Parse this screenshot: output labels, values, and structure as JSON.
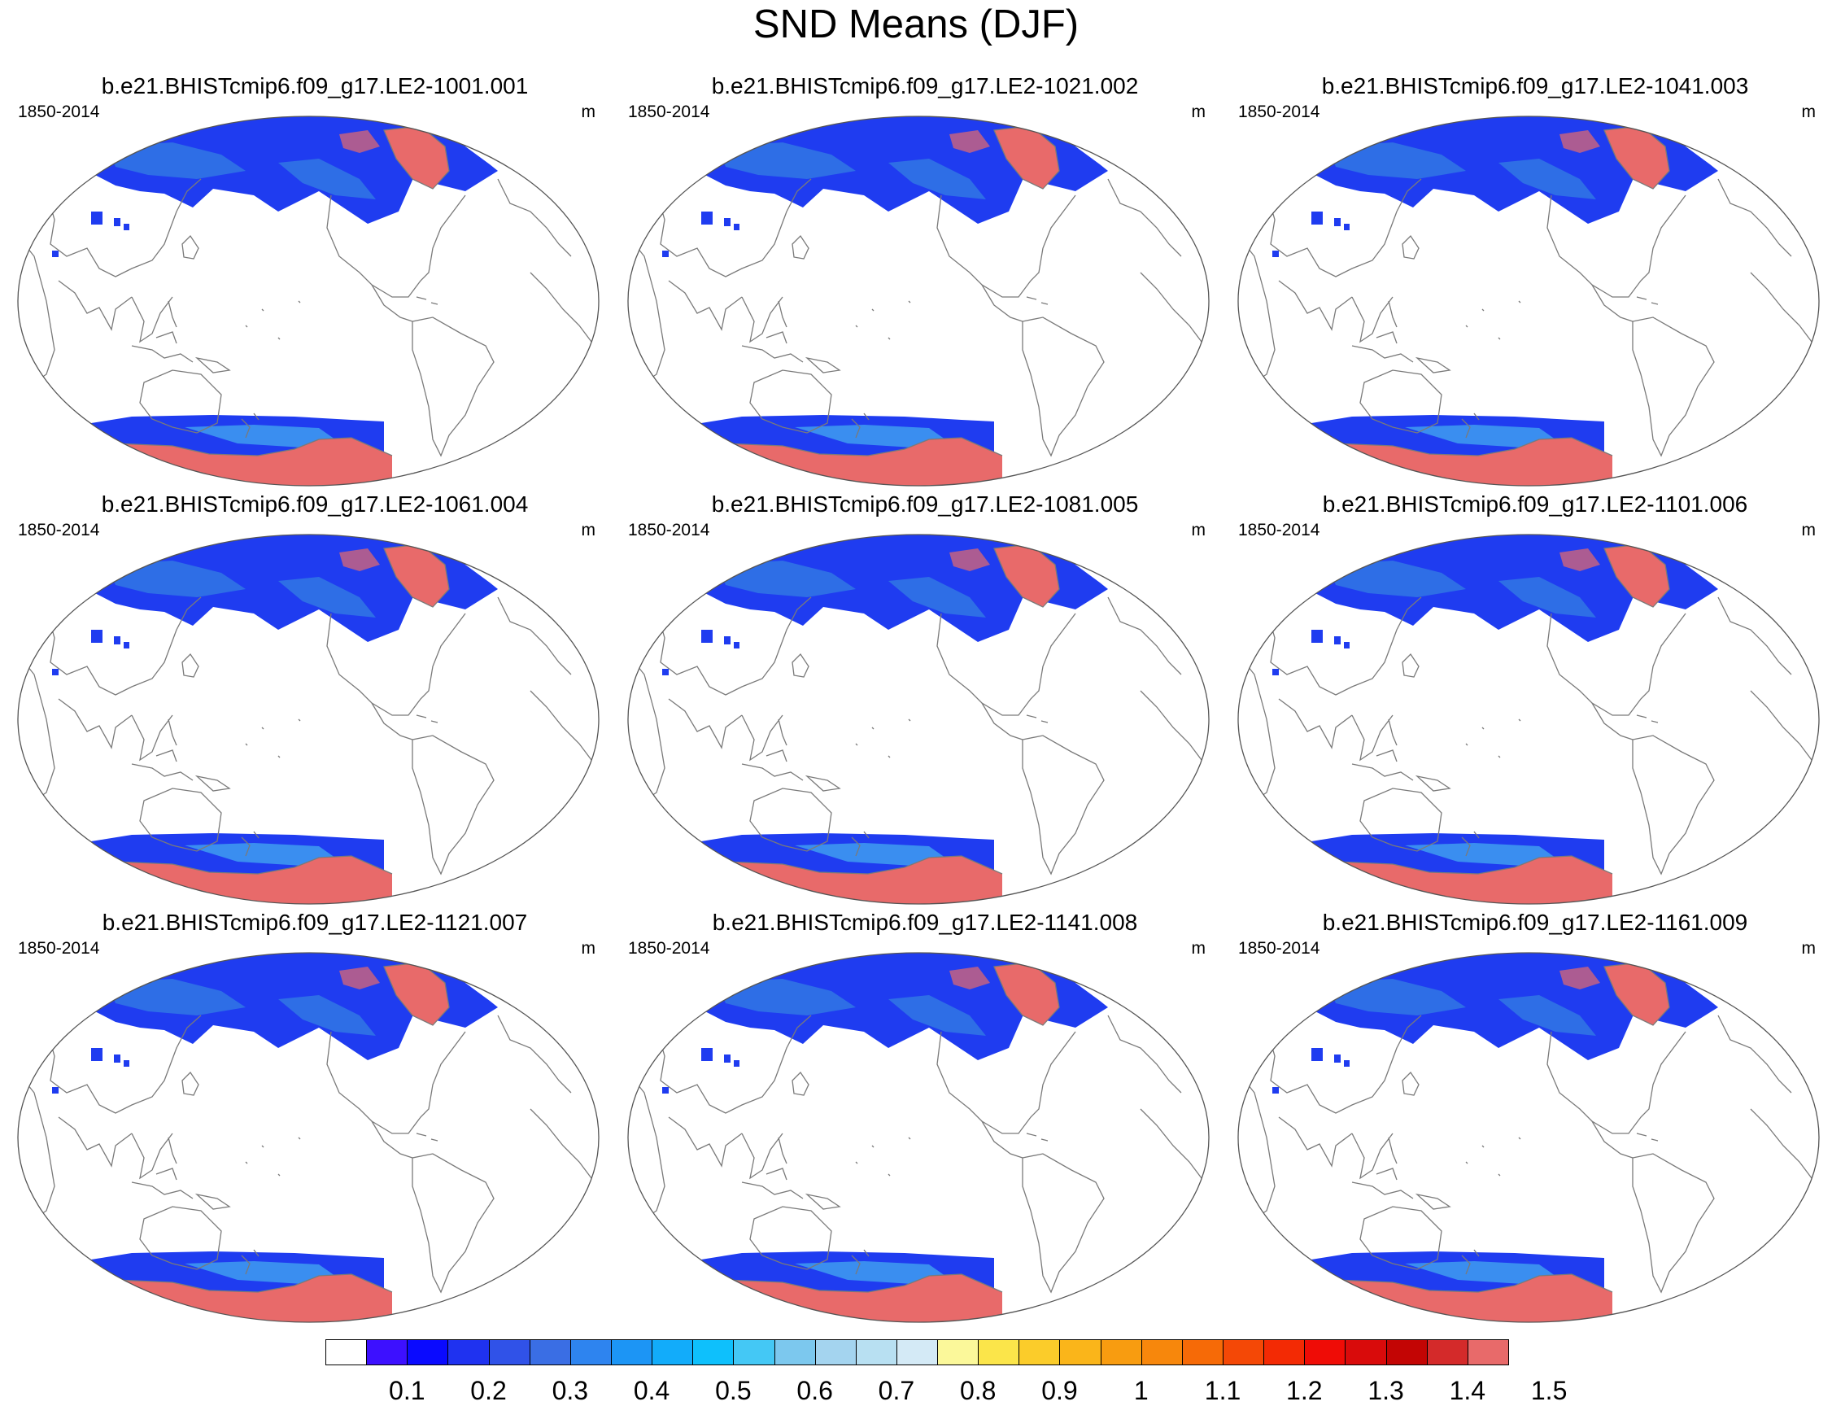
{
  "title": "SND Means (DJF)",
  "panels": [
    {
      "title": "b.e21.BHISTcmip6.f09_g17.LE2-1001.001",
      "period": "1850-2014",
      "units": "m"
    },
    {
      "title": "b.e21.BHISTcmip6.f09_g17.LE2-1021.002",
      "period": "1850-2014",
      "units": "m"
    },
    {
      "title": "b.e21.BHISTcmip6.f09_g17.LE2-1041.003",
      "period": "1850-2014",
      "units": "m"
    },
    {
      "title": "b.e21.BHISTcmip6.f09_g17.LE2-1061.004",
      "period": "1850-2014",
      "units": "m"
    },
    {
      "title": "b.e21.BHISTcmip6.f09_g17.LE2-1081.005",
      "period": "1850-2014",
      "units": "m"
    },
    {
      "title": "b.e21.BHISTcmip6.f09_g17.LE2-1101.006",
      "period": "1850-2014",
      "units": "m"
    },
    {
      "title": "b.e21.BHISTcmip6.f09_g17.LE2-1121.007",
      "period": "1850-2014",
      "units": "m"
    },
    {
      "title": "b.e21.BHISTcmip6.f09_g17.LE2-1141.008",
      "period": "1850-2014",
      "units": "m"
    },
    {
      "title": "b.e21.BHISTcmip6.f09_g17.LE2-1161.009",
      "period": "1850-2014",
      "units": "m"
    }
  ],
  "colorbar": {
    "labels": [
      "0.1",
      "0.2",
      "0.3",
      "0.4",
      "0.5",
      "0.6",
      "0.7",
      "0.8",
      "0.9",
      "1",
      "1.1",
      "1.2",
      "1.3",
      "1.4",
      "1.5"
    ],
    "colors": [
      "#ffffff",
      "#3d10ff",
      "#0a0aff",
      "#1f32f0",
      "#3052e8",
      "#3a6ee4",
      "#2e84ef",
      "#1c95f5",
      "#12acfa",
      "#0ec0fc",
      "#44c8f5",
      "#7cc8ee",
      "#a4d4ef",
      "#b8e0f2",
      "#d4eaf6",
      "#fbf89a",
      "#fbe54a",
      "#fbcc2a",
      "#fab51a",
      "#f89c10",
      "#f7870c",
      "#f66a07",
      "#f44806",
      "#f32a04",
      "#ef0c06",
      "#d90b0b",
      "#c30504",
      "#d42a2a",
      "#e86a6a"
    ]
  },
  "map_colors": {
    "deep_snow": "#e86a6a",
    "snow_low": "#1f3cf0",
    "snow_mid": "#2e6ee6",
    "snow_high": "#3a8ef0",
    "coast": "#7a7a7a"
  }
}
